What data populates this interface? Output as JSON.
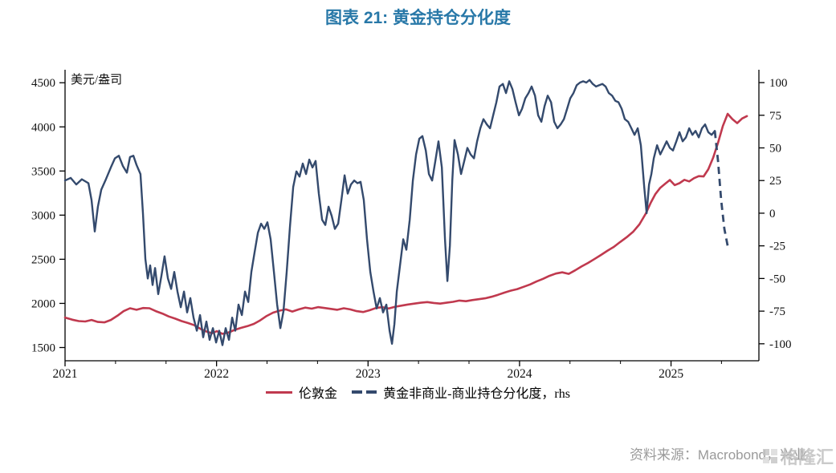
{
  "colors": {
    "title": "#2878a8",
    "gold_line": "#c0394e",
    "spread_line": "#344a6d",
    "axis": "#000000",
    "source_text": "#9a9a9a",
    "watermark": "#bdbdbd"
  },
  "legend": [
    {
      "label": "伦敦金"
    },
    {
      "label": "黄金非商业-商业持仓分化度，rhs"
    }
  ],
  "source": {
    "text": "资料来源：Macrobond，兴业",
    "watermark": "格隆汇"
  },
  "chart_data": {
    "type": "line",
    "title": "图表 21: 黄金持仓分化度",
    "x_axis": {
      "range": [
        2021.0,
        2025.58
      ],
      "ticks": [
        2021,
        2022,
        2023,
        2024,
        2025
      ],
      "minor_tick_step": 0.3333
    },
    "left_axis": {
      "label": "美元/盎司",
      "range": [
        1350,
        4620
      ],
      "ticks": [
        1500,
        2000,
        2500,
        3000,
        3500,
        4000,
        4500
      ]
    },
    "right_axis": {
      "range": [
        -113,
        108
      ],
      "ticks": [
        -100,
        -75,
        -50,
        -25,
        0,
        25,
        50,
        75,
        100
      ]
    },
    "grid": false,
    "legend_position": "bottom",
    "series": [
      {
        "key": "london-gold",
        "name": "伦敦金",
        "axis": "left",
        "color": "#c0394e",
        "style": "solid",
        "t": [
          2021.0,
          2021.048,
          2021.09,
          2021.133,
          2021.175,
          2021.217,
          2021.26,
          2021.302,
          2021.345,
          2021.387,
          2021.429,
          2021.472,
          2021.514,
          2021.557,
          2021.599,
          2021.642,
          2021.684,
          2021.726,
          2021.769,
          2021.811,
          2021.854,
          2021.896,
          2021.939,
          2021.97,
          2022.002,
          2022.039,
          2022.076,
          2022.119,
          2022.161,
          2022.204,
          2022.246,
          2022.288,
          2022.331,
          2022.373,
          2022.416,
          2022.458,
          2022.5,
          2022.543,
          2022.585,
          2022.628,
          2022.67,
          2022.713,
          2022.755,
          2022.797,
          2022.84,
          2022.882,
          2022.925,
          2022.967,
          2023.01,
          2023.052,
          2023.094,
          2023.137,
          2023.179,
          2023.222,
          2023.264,
          2023.306,
          2023.349,
          2023.391,
          2023.434,
          2023.476,
          2023.518,
          2023.561,
          2023.603,
          2023.646,
          2023.688,
          2023.731,
          2023.773,
          2023.815,
          2023.858,
          2023.9,
          2023.943,
          2023.985,
          2024.028,
          2024.07,
          2024.112,
          2024.155,
          2024.197,
          2024.24,
          2024.282,
          2024.325,
          2024.367,
          2024.409,
          2024.452,
          2024.494,
          2024.537,
          2024.579,
          2024.622,
          2024.664,
          2024.706,
          2024.749,
          2024.791,
          2024.834,
          2024.866,
          2024.897,
          2024.929,
          2024.961,
          2024.992,
          2025.024,
          2025.056,
          2025.088,
          2025.12,
          2025.151,
          2025.183,
          2025.215,
          2025.246,
          2025.278,
          2025.31,
          2025.342,
          2025.374,
          2025.405,
          2025.437,
          2025.469,
          2025.501
        ],
        "v": [
          1840,
          1815,
          1800,
          1795,
          1812,
          1790,
          1785,
          1812,
          1860,
          1912,
          1945,
          1928,
          1948,
          1945,
          1912,
          1885,
          1852,
          1828,
          1800,
          1778,
          1752,
          1710,
          1678,
          1662,
          1685,
          1655,
          1668,
          1700,
          1722,
          1742,
          1768,
          1808,
          1858,
          1895,
          1918,
          1932,
          1908,
          1932,
          1952,
          1940,
          1958,
          1948,
          1938,
          1928,
          1945,
          1932,
          1912,
          1902,
          1922,
          1948,
          1958,
          1942,
          1962,
          1975,
          1988,
          1998,
          2008,
          2015,
          2005,
          1998,
          2008,
          2018,
          2032,
          2025,
          2038,
          2048,
          2058,
          2075,
          2098,
          2122,
          2145,
          2162,
          2188,
          2215,
          2248,
          2278,
          2312,
          2338,
          2352,
          2335,
          2375,
          2418,
          2458,
          2502,
          2548,
          2595,
          2640,
          2695,
          2748,
          2810,
          2895,
          3020,
          3140,
          3240,
          3310,
          3355,
          3398,
          3340,
          3362,
          3400,
          3382,
          3418,
          3442,
          3438,
          3520,
          3650,
          3820,
          4010,
          4148,
          4088,
          4042,
          4095,
          4122
        ]
      },
      {
        "key": "cot-spread",
        "name": "黄金非商业-商业持仓分化度",
        "axis": "right",
        "color": "#344a6d",
        "style": "solid_then_dashed",
        "dash_start_t": 2025.289,
        "t": [
          2021.0,
          2021.037,
          2021.074,
          2021.111,
          2021.154,
          2021.175,
          2021.196,
          2021.217,
          2021.239,
          2021.27,
          2021.302,
          2021.329,
          2021.355,
          2021.382,
          2021.408,
          2021.429,
          2021.451,
          2021.472,
          2021.498,
          2021.514,
          2021.53,
          2021.546,
          2021.562,
          2021.578,
          2021.594,
          2021.615,
          2021.636,
          2021.657,
          2021.679,
          2021.7,
          2021.721,
          2021.742,
          2021.764,
          2021.785,
          2021.806,
          2021.827,
          2021.848,
          2021.87,
          2021.891,
          2021.912,
          2021.933,
          2021.954,
          2021.976,
          2021.997,
          2022.018,
          2022.039,
          2022.06,
          2022.082,
          2022.103,
          2022.124,
          2022.145,
          2022.167,
          2022.188,
          2022.209,
          2022.23,
          2022.251,
          2022.273,
          2022.294,
          2022.315,
          2022.336,
          2022.357,
          2022.379,
          2022.4,
          2022.421,
          2022.442,
          2022.463,
          2022.485,
          2022.506,
          2022.527,
          2022.548,
          2022.569,
          2022.591,
          2022.612,
          2022.633,
          2022.654,
          2022.675,
          2022.697,
          2022.718,
          2022.739,
          2022.76,
          2022.781,
          2022.803,
          2022.824,
          2022.845,
          2022.866,
          2022.887,
          2022.909,
          2022.93,
          2022.951,
          2022.972,
          2022.993,
          2023.015,
          2023.036,
          2023.057,
          2023.078,
          2023.099,
          2023.121,
          2023.142,
          2023.158,
          2023.174,
          2023.19,
          2023.211,
          2023.232,
          2023.253,
          2023.275,
          2023.296,
          2023.317,
          2023.338,
          2023.359,
          2023.381,
          2023.402,
          2023.423,
          2023.444,
          2023.465,
          2023.487,
          2023.508,
          2023.524,
          2023.54,
          2023.556,
          2023.571,
          2023.593,
          2023.614,
          2023.635,
          2023.656,
          2023.677,
          2023.699,
          2023.72,
          2023.741,
          2023.762,
          2023.784,
          2023.805,
          2023.826,
          2023.847,
          2023.868,
          2023.89,
          2023.911,
          2023.932,
          2023.953,
          2023.974,
          2023.996,
          2024.017,
          2024.038,
          2024.059,
          2024.08,
          2024.102,
          2024.123,
          2024.144,
          2024.165,
          2024.186,
          2024.208,
          2024.229,
          2024.25,
          2024.271,
          2024.293,
          2024.314,
          2024.335,
          2024.356,
          2024.377,
          2024.399,
          2024.42,
          2024.441,
          2024.462,
          2024.483,
          2024.505,
          2024.526,
          2024.547,
          2024.568,
          2024.589,
          2024.611,
          2024.632,
          2024.653,
          2024.674,
          2024.695,
          2024.717,
          2024.738,
          2024.759,
          2024.78,
          2024.801,
          2024.823,
          2024.839,
          2024.855,
          2024.87,
          2024.886,
          2024.908,
          2024.929,
          2024.95,
          2024.971,
          2024.992,
          2025.013,
          2025.035,
          2025.056,
          2025.077,
          2025.098,
          2025.12,
          2025.141,
          2025.162,
          2025.183,
          2025.204,
          2025.225,
          2025.246,
          2025.268,
          2025.289,
          2025.31,
          2025.331,
          2025.352,
          2025.374
        ],
        "v": [
          25,
          27,
          22,
          26,
          23,
          10,
          -14,
          5,
          18,
          26,
          35,
          42,
          44,
          36,
          31,
          43,
          44,
          37,
          30,
          0,
          -35,
          -50,
          -40,
          -55,
          -42,
          -62,
          -48,
          -33,
          -50,
          -58,
          -45,
          -60,
          -72,
          -60,
          -76,
          -65,
          -80,
          -90,
          -78,
          -95,
          -83,
          -97,
          -88,
          -99,
          -90,
          -101,
          -88,
          -97,
          -80,
          -90,
          -70,
          -78,
          -60,
          -68,
          -45,
          -30,
          -15,
          -8,
          -12,
          -7,
          -20,
          -45,
          -70,
          -88,
          -75,
          -45,
          -10,
          20,
          32,
          28,
          38,
          30,
          41,
          35,
          40,
          15,
          -5,
          -9,
          5,
          -2,
          -12,
          -8,
          10,
          29,
          15,
          22,
          25,
          23,
          24,
          10,
          -20,
          -45,
          -60,
          -73,
          -65,
          -76,
          -70,
          -90,
          -100,
          -85,
          -60,
          -40,
          -20,
          -28,
          -5,
          25,
          45,
          57,
          59,
          48,
          30,
          25,
          40,
          55,
          35,
          -20,
          -52,
          -25,
          25,
          56,
          45,
          30,
          40,
          50,
          45,
          42,
          55,
          65,
          72,
          68,
          65,
          75,
          85,
          97,
          99,
          92,
          101,
          95,
          85,
          75,
          80,
          88,
          92,
          97,
          90,
          75,
          70,
          82,
          90,
          85,
          70,
          65,
          68,
          72,
          80,
          88,
          92,
          98,
          100,
          101,
          100,
          102,
          99,
          97,
          98,
          99,
          97,
          92,
          90,
          86,
          85,
          80,
          72,
          70,
          65,
          60,
          65,
          52,
          20,
          0,
          22,
          30,
          42,
          52,
          45,
          50,
          55,
          50,
          48,
          55,
          62,
          55,
          58,
          65,
          60,
          63,
          58,
          65,
          68,
          62,
          60,
          63,
          40,
          10,
          -12,
          -25
        ]
      }
    ]
  }
}
